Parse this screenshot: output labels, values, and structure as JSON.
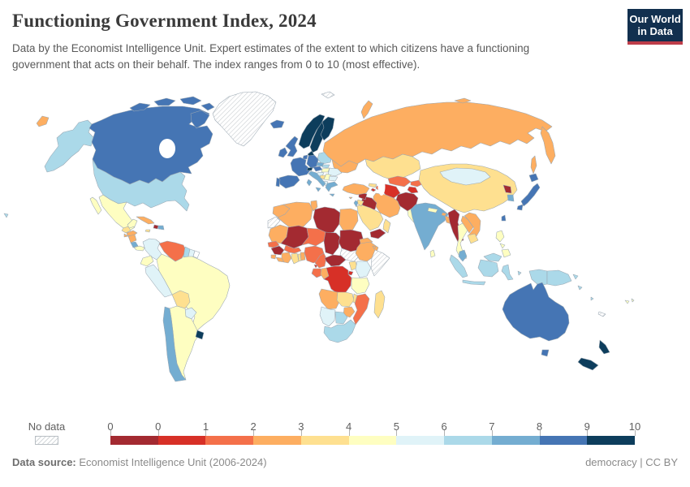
{
  "header": {
    "title": "Functioning Government Index, 2024",
    "subtitle": "Data by the Economist Intelligence Unit. Expert estimates of the extent to which citizens have a functioning government that acts on their behalf. The index ranges from 0 to 10 (most effective).",
    "logo": {
      "line1": "Our World",
      "line2": "in Data",
      "bg_color": "#12304f",
      "accent_color": "#bd3d49"
    }
  },
  "legend": {
    "no_data_label": "No data",
    "tick_labels": [
      "0",
      "0",
      "1",
      "2",
      "3",
      "4",
      "5",
      "6",
      "7",
      "8",
      "9",
      "10"
    ],
    "colors": [
      "#a32a31",
      "#d73027",
      "#f4704a",
      "#fdae61",
      "#fee090",
      "#fefec1",
      "#e0f3f8",
      "#abd9e9",
      "#74add1",
      "#4575b4",
      "#0d3d5c"
    ]
  },
  "footer": {
    "source_label": "Data source:",
    "source_text": " Economist Intelligence Unit (2006-2024)",
    "right_text": "democracy | CC BY"
  },
  "chart_data": {
    "type": "heatmap",
    "subtype": "choropleth-world-map",
    "title": "Functioning Government Index, 2024",
    "value_range": [
      0,
      10
    ],
    "bins": [
      "0-0",
      "0-1",
      "1-2",
      "2-3",
      "3-4",
      "4-5",
      "5-6",
      "6-7",
      "7-8",
      "8-9",
      "9-10"
    ],
    "no_data_key": "nd",
    "regions": {
      "chukotka-wrap": 3,
      "alaska": 7,
      "hawaii": 7,
      "canada": 9,
      "greenland": "nd",
      "svalbard": "nd",
      "iceland": 9,
      "usa": 7,
      "mexico": 5,
      "guatemala": 4,
      "honduras": 3,
      "el-salvador": 3,
      "nicaragua": 3,
      "costa-rica": 8,
      "panama": 5,
      "cuba": 3,
      "jamaica": 4,
      "haiti": 0,
      "dominican-republic": 8,
      "colombia": 6,
      "venezuela": 2,
      "guyana": 7,
      "suriname": 6,
      "ecuador": 5,
      "peru": 6,
      "brazil": 5,
      "bolivia": 4,
      "paraguay": 6,
      "chile": 8,
      "argentina": 5,
      "uruguay": 10,
      "norway": 10,
      "sweden": 10,
      "finland": 10,
      "denmark": 10,
      "estonia": 8,
      "latvia": 7,
      "lithuania": 7,
      "belarus": 1,
      "ukraine": 3,
      "poland": 7,
      "germany": 9,
      "netherlands": 9,
      "belgium": 8,
      "uk": 9,
      "ireland": 9,
      "france": 9,
      "switzerland": 10,
      "austria": 9,
      "czechia": 8,
      "slovakia": 7,
      "hungary": 5,
      "romania": 6,
      "croatia": 6,
      "bosnia": 4,
      "serbia": 5,
      "bulgaria": 6,
      "albania": 6,
      "greece": 8,
      "italy": 8,
      "spain": 9,
      "portugal": 9,
      "morocco": 3,
      "western-sahara": "nd",
      "algeria": 3,
      "tunisia": 3,
      "libya": 0,
      "egypt": 3,
      "mauritania": 3,
      "mali": 0,
      "niger": 2,
      "chad": 0,
      "sudan": 0,
      "eritrea": 3,
      "senegal": 2,
      "guinea": 0,
      "sierra-leone": 3,
      "liberia": 3,
      "ivory-coast": 3,
      "burkina-faso": 2,
      "ghana": 4,
      "togo": 4,
      "benin": 3,
      "nigeria": 2,
      "cameroon": 2,
      "equatorial-guinea": 1,
      "gabon": 2,
      "congo": 3,
      "central-african-republic": 0,
      "south-sudan": "nd",
      "ethiopia": 3,
      "djibouti": 3,
      "somalia": "nd",
      "uganda": 4,
      "kenya": 6,
      "rwanda": 1,
      "drc": 1,
      "tanzania": 5,
      "angola": 3,
      "zambia": 4,
      "malawi": 4,
      "mozambique": 2,
      "zimbabwe": 3,
      "namibia": 6,
      "botswana": 7,
      "south-africa": 7,
      "madagascar": 4,
      "russia": 3,
      "novaya-zemlya": 3,
      "kazakhstan": 4,
      "uzbekistan": 2,
      "turkmenistan": 1,
      "kyrgyzstan": 2,
      "tajikistan": 1,
      "afghanistan": 0,
      "pakistan": 5,
      "iran": 3,
      "iraq": 0,
      "syria": 0,
      "turkey": 3,
      "georgia": 4,
      "azerbaijan": 2,
      "armenia": 1,
      "saudi-arabia": 4,
      "yemen": 0,
      "oman": 4,
      "jordan": 4,
      "israel": 8,
      "cyprus": 3,
      "india": 8,
      "nepal": 5,
      "bhutan": 3,
      "bangladesh": 3,
      "sri-lanka": 5,
      "china": 4,
      "mongolia": 6,
      "north-korea": 0,
      "south-korea": 8,
      "japan": 9,
      "taiwan": 9,
      "myanmar": 0,
      "thailand": 5,
      "laos": 3,
      "vietnam": 3,
      "cambodia": 4,
      "malaysia": 8,
      "malaysia-borneo": 7,
      "indonesia": 7,
      "philippines": 5,
      "papua-new-guinea": 7,
      "australia": 9,
      "new-zealand": 10,
      "fiji": 5,
      "new-caledonia": "nd",
      "solomon-islands": 7,
      "vanuatu": 7
    }
  }
}
